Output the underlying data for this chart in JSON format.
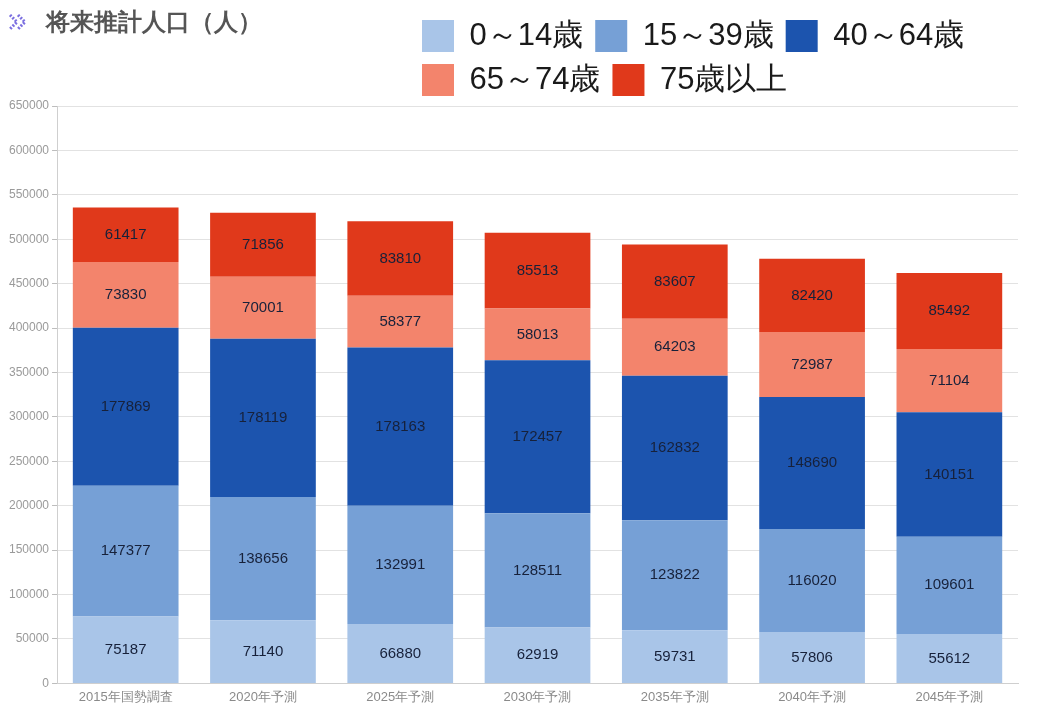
{
  "chart_data": {
    "type": "bar",
    "title": "将来推計人口（人）",
    "categories": [
      "2015年国勢調査",
      "2020年予測",
      "2025年予測",
      "2030年予測",
      "2035年予測",
      "2040年予測",
      "2045年予測"
    ],
    "series": [
      {
        "name": "0～14歳",
        "color": "#a9c5e8",
        "values": [
          75187,
          71140,
          66880,
          62919,
          59731,
          57806,
          55612
        ]
      },
      {
        "name": "15～39歳",
        "color": "#76a0d6",
        "values": [
          147377,
          138656,
          132991,
          128511,
          123822,
          116020,
          109601
        ]
      },
      {
        "name": "40～64歳",
        "color": "#1c54ae",
        "values": [
          177869,
          178119,
          178163,
          172457,
          162832,
          148690,
          140151
        ]
      },
      {
        "name": "65～74歳",
        "color": "#f3846c",
        "values": [
          73830,
          70001,
          58377,
          58013,
          64203,
          72987,
          71104
        ]
      },
      {
        "name": "75歳以上",
        "color": "#e0391b",
        "values": [
          61417,
          71856,
          83810,
          85513,
          83607,
          82420,
          85492
        ]
      }
    ],
    "stacked": true,
    "ylim": [
      0,
      650000
    ],
    "yticks": [
      0,
      50000,
      100000,
      150000,
      200000,
      250000,
      300000,
      350000,
      400000,
      450000,
      500000,
      550000,
      600000,
      650000
    ],
    "grid": "y",
    "legend": "top right",
    "data_labels": true
  }
}
